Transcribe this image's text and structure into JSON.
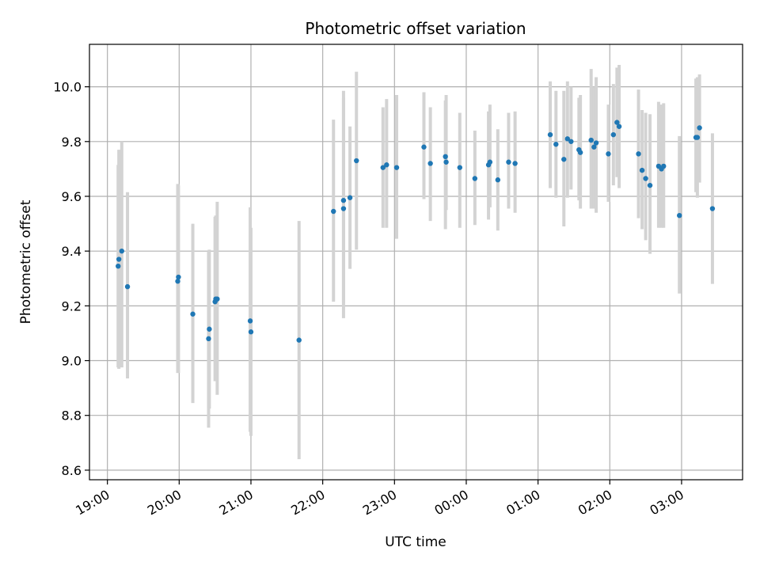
{
  "chart_data": {
    "type": "scatter",
    "title": "Photometric offset variation",
    "xlabel": "UTC time",
    "ylabel": "Photometric offset",
    "x_ticks": [
      "19:00",
      "20:00",
      "21:00",
      "22:00",
      "23:00",
      "00:00",
      "01:00",
      "02:00",
      "03:00"
    ],
    "y_ticks": [
      "8.6",
      "8.8",
      "9.0",
      "9.2",
      "9.4",
      "9.6",
      "9.8",
      "10.0"
    ],
    "xlim_hours": [
      18.75,
      27.85
    ],
    "ylim": [
      8.565,
      10.155
    ],
    "grid": true,
    "point_color": "#1f77b4",
    "errorbar_color": "#d3d3d3",
    "series": [
      {
        "x_hours": [
          19.15,
          19.16,
          19.2,
          19.28,
          19.98,
          19.99,
          20.19,
          20.41,
          20.42,
          20.5,
          20.53,
          20.51,
          20.99,
          21.0,
          21.67,
          22.15,
          22.29,
          22.29,
          22.38,
          22.47,
          22.84,
          22.89,
          23.03,
          23.41,
          23.5,
          23.71,
          23.72,
          23.91,
          24.12,
          24.31,
          24.33,
          24.44,
          24.59,
          24.68,
          25.17,
          25.25,
          25.36,
          25.41,
          25.46,
          25.57,
          25.59,
          25.74,
          25.78,
          25.81,
          25.98,
          26.05,
          26.1,
          26.13,
          26.4,
          26.45,
          26.5,
          26.56,
          26.68,
          26.72,
          26.75,
          26.97,
          27.2,
          27.22,
          27.25,
          27.43
        ],
        "y": [
          9.345,
          9.37,
          9.4,
          9.27,
          9.29,
          9.305,
          9.17,
          9.08,
          9.115,
          9.215,
          9.225,
          9.225,
          9.145,
          9.105,
          9.075,
          9.545,
          9.555,
          9.585,
          9.595,
          9.73,
          9.705,
          9.715,
          9.705,
          9.78,
          9.72,
          9.745,
          9.725,
          9.705,
          9.665,
          9.715,
          9.725,
          9.66,
          9.725,
          9.72,
          9.825,
          9.79,
          9.735,
          9.81,
          9.8,
          9.77,
          9.76,
          9.805,
          9.78,
          9.795,
          9.755,
          9.825,
          9.87,
          9.855,
          9.755,
          9.695,
          9.665,
          9.64,
          9.71,
          9.7,
          9.71,
          9.53,
          9.815,
          9.815,
          9.85,
          9.555
        ],
        "err_low": [
          8.975,
          8.97,
          8.975,
          8.935,
          8.955,
          8.955,
          8.845,
          8.755,
          8.825,
          8.925,
          8.875,
          8.945,
          8.74,
          8.725,
          8.64,
          9.215,
          9.155,
          9.21,
          9.335,
          9.405,
          9.485,
          9.485,
          9.445,
          9.59,
          9.51,
          9.48,
          9.55,
          9.485,
          9.495,
          9.515,
          9.56,
          9.475,
          9.555,
          9.54,
          9.63,
          9.595,
          9.49,
          9.595,
          9.625,
          9.585,
          9.555,
          9.555,
          9.555,
          9.54,
          9.58,
          9.64,
          9.67,
          9.63,
          9.52,
          9.48,
          9.44,
          9.39,
          9.485,
          9.485,
          9.485,
          9.245,
          9.615,
          9.595,
          9.65,
          9.28
        ],
        "err_high": [
          9.715,
          9.77,
          9.8,
          9.615,
          9.645,
          9.64,
          9.5,
          9.4,
          9.405,
          9.525,
          9.58,
          9.53,
          9.56,
          9.485,
          9.51,
          9.88,
          9.985,
          9.96,
          9.855,
          10.055,
          9.925,
          9.955,
          9.97,
          9.98,
          9.925,
          9.95,
          9.97,
          9.905,
          9.84,
          9.91,
          9.935,
          9.845,
          9.905,
          9.91,
          10.02,
          9.985,
          9.985,
          10.02,
          10.0,
          9.96,
          9.97,
          10.065,
          10.0,
          10.035,
          9.935,
          10.01,
          10.07,
          10.08,
          9.99,
          9.915,
          9.905,
          9.9,
          9.945,
          9.935,
          9.94,
          9.82,
          10.03,
          10.035,
          10.045,
          9.83
        ]
      }
    ]
  }
}
